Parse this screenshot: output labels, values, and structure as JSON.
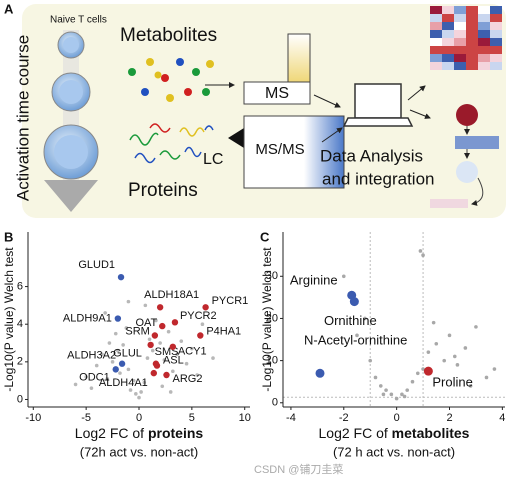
{
  "panel_a": {
    "letter": "A",
    "cells_label": "Naive T cells",
    "time_label": "Activation time course",
    "metabolites": "Metabolites",
    "ms": "MS",
    "proteins": "Proteins",
    "lc": "LC",
    "msms": "MS/MS",
    "analysis_line1": "Data Analysis",
    "analysis_line2": "and integration"
  },
  "watermark": "CSDN @铺刀圭菜",
  "chart_data": [
    {
      "type": "scatter",
      "letter": "B",
      "ylabel": "-Log10(P value) Welch test",
      "xlabel": "Log2 FC of ",
      "xlabel_bold": "proteins",
      "xsub": "(72h act vs. non-act)",
      "xlim": [
        -10.5,
        10.5
      ],
      "ylim": [
        -0.4,
        8.9
      ],
      "xticks": [
        -10,
        -5,
        0,
        5,
        10
      ],
      "yticks": [
        0,
        2,
        4,
        6
      ],
      "points": {
        "color": "#b8b8b8",
        "x": [
          -6,
          -5,
          -4.5,
          -4,
          -3.5,
          -3,
          -2.8,
          -2.5,
          -2.2,
          -2,
          -1.8,
          -1.5,
          -1.2,
          -1,
          -0.8,
          -0.5,
          -0.3,
          0,
          0.2,
          0.5,
          0.8,
          1,
          1.3,
          1.6,
          2,
          2.4,
          2.8,
          3.2,
          3.6,
          4,
          4.5,
          5,
          5.5,
          6,
          7,
          -3.2,
          -1,
          0.6,
          2.2,
          3
        ],
        "y": [
          0.8,
          1.2,
          0.6,
          1.8,
          2.4,
          1.1,
          3.0,
          2.0,
          3.5,
          2.6,
          1.4,
          2.9,
          3.8,
          1.6,
          0.5,
          1.0,
          0.3,
          0.1,
          0.4,
          0.9,
          2.2,
          3.2,
          2.6,
          4.2,
          3.0,
          2.1,
          3.6,
          1.5,
          2.4,
          3.1,
          1.9,
          2.7,
          1.3,
          4.0,
          2.2,
          4.6,
          5.2,
          5.0,
          0.7,
          0.4
        ]
      },
      "highlights": {
        "labels": [
          "GLUD1",
          "ALDH9A1",
          "ALDH3A2",
          "ODC1",
          "GLUL",
          "ALDH4A1",
          "ASL",
          "ARG2",
          "ALDH18A1",
          "PYCR1",
          "OAT",
          "PYCR2",
          "SRM",
          "SMS",
          "ACY1",
          "P4HA1"
        ],
        "x": [
          -1.7,
          -2,
          -1.6,
          -2.2,
          1.6,
          1.4,
          1.7,
          2.6,
          2.0,
          6.3,
          2.2,
          3.4,
          1.5,
          1.1,
          3.2,
          5.8
        ],
        "y": [
          6.5,
          4.3,
          1.9,
          1.6,
          1.9,
          1.4,
          1.8,
          1.3,
          4.9,
          4.9,
          3.9,
          4.1,
          3.4,
          2.9,
          2.8,
          3.4
        ],
        "colors": [
          "#3b5bb0",
          "#3b5bb0",
          "#3b5bb0",
          "#3b5bb0",
          "#c0282d",
          "#c0282d",
          "#c0282d",
          "#c0282d",
          "#c0282d",
          "#c0282d",
          "#c0282d",
          "#c0282d",
          "#c0282d",
          "#c0282d",
          "#c0282d",
          "#c0282d"
        ]
      }
    },
    {
      "type": "scatter",
      "letter": "C",
      "ylabel": "-Log10(P value) Welch test",
      "xlabel": "Log2 FC of ",
      "xlabel_bold": "metabolites",
      "xsub": "(72 h act vs. non-act)",
      "xlim": [
        -4.3,
        4.1
      ],
      "ylim": [
        -1,
        40.5
      ],
      "xticks": [
        -4,
        -2,
        0,
        2,
        4
      ],
      "yticks": [
        0,
        10,
        20,
        30
      ],
      "vlines": [
        -1,
        1
      ],
      "hline": 1.3,
      "points": {
        "color": "#a8a8a8",
        "x": [
          -2,
          -1.5,
          -1.2,
          -1,
          -0.8,
          -0.6,
          -0.4,
          -0.2,
          0,
          0.2,
          0.4,
          0.6,
          0.8,
          1,
          1.2,
          1.5,
          1.8,
          2,
          2.3,
          2.6,
          3,
          3.4,
          3.7,
          -0.5,
          0.3,
          0.9,
          1.4,
          2.2,
          2.8,
          1
        ],
        "y": [
          30,
          16,
          20,
          10,
          6,
          4,
          3,
          2,
          1,
          2,
          3,
          5,
          7,
          8,
          12,
          14,
          10,
          16,
          9,
          13,
          18,
          6,
          8,
          2,
          1.5,
          36,
          19,
          11,
          4,
          35
        ]
      },
      "highlights": {
        "labels": [
          "Arginine",
          "Ornithine",
          "N-Acetyl-ornithine",
          "Proline"
        ],
        "x": [
          -1.7,
          -1.6,
          -2.9,
          1.2
        ],
        "y": [
          25.5,
          24,
          7,
          7.5
        ],
        "colors": [
          "#3b5bb0",
          "#3b5bb0",
          "#3b5bb0",
          "#c0282d"
        ]
      }
    }
  ]
}
